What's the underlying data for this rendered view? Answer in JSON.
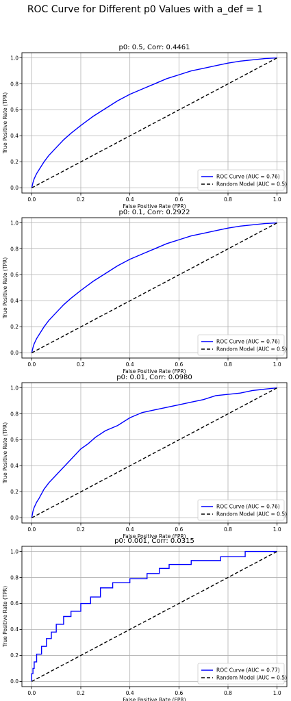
{
  "suptitle": "ROC Curve for Different p0 Values with a_def = 1",
  "colors": {
    "roc": "#0000ff",
    "random": "#000000",
    "grid": "#b0b0b0"
  },
  "chart_data": [
    {
      "type": "line",
      "title": "p0: 0.5, Corr: 0.4461",
      "xlabel": "False Positive Rate (FPR)",
      "ylabel": "True Positive Rate (TPR)",
      "xlim": [
        -0.04,
        1.04
      ],
      "ylim": [
        -0.04,
        1.04
      ],
      "xticks": [
        "0.0",
        "0.2",
        "0.4",
        "0.6",
        "0.8",
        "1.0"
      ],
      "yticks": [
        "0.0",
        "0.2",
        "0.4",
        "0.6",
        "0.8",
        "1.0"
      ],
      "grid": true,
      "legend_position": "lower-right",
      "series": [
        {
          "name": "ROC Curve (AUC = 0.76)",
          "style": "solid",
          "color": "#0000ff",
          "x": [
            0,
            0.005,
            0.01,
            0.02,
            0.03,
            0.05,
            0.07,
            0.1,
            0.13,
            0.16,
            0.2,
            0.25,
            0.3,
            0.35,
            0.4,
            0.45,
            0.5,
            0.55,
            0.6,
            0.65,
            0.7,
            0.75,
            0.8,
            0.85,
            0.9,
            0.95,
            1.0
          ],
          "y": [
            0,
            0.04,
            0.07,
            0.11,
            0.14,
            0.2,
            0.25,
            0.31,
            0.37,
            0.42,
            0.48,
            0.55,
            0.61,
            0.67,
            0.72,
            0.76,
            0.8,
            0.84,
            0.87,
            0.9,
            0.92,
            0.94,
            0.96,
            0.975,
            0.985,
            0.995,
            1.0
          ]
        },
        {
          "name": "Random Model (AUC = 0.5)",
          "style": "dashed",
          "color": "#000000",
          "x": [
            0,
            1
          ],
          "y": [
            0,
            1
          ]
        }
      ]
    },
    {
      "type": "line",
      "title": "p0: 0.1, Corr: 0.2922",
      "xlabel": "False Positive Rate (FPR)",
      "ylabel": "True Positive Rate (TPR)",
      "xlim": [
        -0.04,
        1.04
      ],
      "ylim": [
        -0.04,
        1.04
      ],
      "xticks": [
        "0.0",
        "0.2",
        "0.4",
        "0.6",
        "0.8",
        "1.0"
      ],
      "yticks": [
        "0.0",
        "0.2",
        "0.4",
        "0.6",
        "0.8",
        "1.0"
      ],
      "grid": true,
      "legend_position": "lower-right",
      "series": [
        {
          "name": "ROC Curve (AUC = 0.76)",
          "style": "solid",
          "color": "#0000ff",
          "x": [
            0,
            0.005,
            0.01,
            0.02,
            0.03,
            0.05,
            0.07,
            0.1,
            0.13,
            0.16,
            0.2,
            0.25,
            0.3,
            0.35,
            0.4,
            0.45,
            0.5,
            0.55,
            0.6,
            0.65,
            0.7,
            0.75,
            0.8,
            0.85,
            0.9,
            0.95,
            1.0
          ],
          "y": [
            0,
            0.04,
            0.07,
            0.11,
            0.14,
            0.2,
            0.25,
            0.31,
            0.37,
            0.42,
            0.48,
            0.55,
            0.61,
            0.67,
            0.72,
            0.76,
            0.8,
            0.84,
            0.87,
            0.9,
            0.92,
            0.94,
            0.96,
            0.975,
            0.985,
            0.995,
            1.0
          ]
        },
        {
          "name": "Random Model (AUC = 0.5)",
          "style": "dashed",
          "color": "#000000",
          "x": [
            0,
            1
          ],
          "y": [
            0,
            1
          ]
        }
      ]
    },
    {
      "type": "line",
      "title": "p0: 0.01, Corr: 0.0980",
      "xlabel": "False Positive Rate (FPR)",
      "ylabel": "True Positive Rate (TPR)",
      "xlim": [
        -0.04,
        1.04
      ],
      "ylim": [
        -0.04,
        1.04
      ],
      "xticks": [
        "0.0",
        "0.2",
        "0.4",
        "0.6",
        "0.8",
        "1.0"
      ],
      "yticks": [
        "0.0",
        "0.2",
        "0.4",
        "0.6",
        "0.8",
        "1.0"
      ],
      "grid": true,
      "legend_position": "lower-right",
      "series": [
        {
          "name": "ROC Curve (AUC = 0.76)",
          "style": "solid",
          "color": "#0000ff",
          "x": [
            0,
            0.005,
            0.01,
            0.02,
            0.03,
            0.05,
            0.07,
            0.1,
            0.13,
            0.16,
            0.2,
            0.23,
            0.26,
            0.3,
            0.35,
            0.4,
            0.45,
            0.5,
            0.55,
            0.6,
            0.65,
            0.7,
            0.75,
            0.8,
            0.85,
            0.9,
            0.95,
            1.0
          ],
          "y": [
            0,
            0.05,
            0.08,
            0.12,
            0.15,
            0.22,
            0.27,
            0.33,
            0.39,
            0.45,
            0.53,
            0.57,
            0.62,
            0.67,
            0.71,
            0.77,
            0.81,
            0.83,
            0.85,
            0.87,
            0.89,
            0.91,
            0.94,
            0.95,
            0.96,
            0.98,
            0.99,
            1.0
          ]
        },
        {
          "name": "Random Model (AUC = 0.5)",
          "style": "dashed",
          "color": "#000000",
          "x": [
            0,
            1
          ],
          "y": [
            0,
            1
          ]
        }
      ]
    },
    {
      "type": "line",
      "title": "p0: 0.001, Corr: 0.0315",
      "xlabel": "False Positive Rate (FPR)",
      "ylabel": "True Positive Rate (TPR)",
      "xlim": [
        -0.04,
        1.04
      ],
      "ylim": [
        -0.04,
        1.04
      ],
      "xticks": [
        "0.0",
        "0.2",
        "0.4",
        "0.6",
        "0.8",
        "1.0"
      ],
      "yticks": [
        "0.0",
        "0.2",
        "0.4",
        "0.6",
        "0.8",
        "1.0"
      ],
      "grid": true,
      "legend_position": "lower-right",
      "series": [
        {
          "name": "ROC Curve (AUC = 0.77)",
          "style": "solid",
          "color": "#0000ff",
          "x": [
            0,
            0.0,
            0.005,
            0.005,
            0.01,
            0.01,
            0.02,
            0.02,
            0.04,
            0.04,
            0.06,
            0.06,
            0.08,
            0.08,
            0.1,
            0.1,
            0.13,
            0.13,
            0.16,
            0.16,
            0.2,
            0.2,
            0.24,
            0.24,
            0.28,
            0.28,
            0.33,
            0.33,
            0.4,
            0.4,
            0.47,
            0.47,
            0.52,
            0.52,
            0.56,
            0.56,
            0.65,
            0.65,
            0.77,
            0.77,
            0.87,
            0.87,
            1.0
          ],
          "y": [
            0,
            0.06,
            0.06,
            0.1,
            0.1,
            0.15,
            0.15,
            0.21,
            0.21,
            0.27,
            0.27,
            0.33,
            0.33,
            0.38,
            0.38,
            0.44,
            0.44,
            0.5,
            0.5,
            0.54,
            0.54,
            0.6,
            0.6,
            0.65,
            0.65,
            0.72,
            0.72,
            0.76,
            0.76,
            0.79,
            0.79,
            0.83,
            0.83,
            0.87,
            0.87,
            0.9,
            0.9,
            0.93,
            0.93,
            0.96,
            0.96,
            1.0,
            1.0
          ]
        },
        {
          "name": "Random Model (AUC = 0.5)",
          "style": "dashed",
          "color": "#000000",
          "x": [
            0,
            1
          ],
          "y": [
            0,
            1
          ]
        }
      ]
    }
  ]
}
